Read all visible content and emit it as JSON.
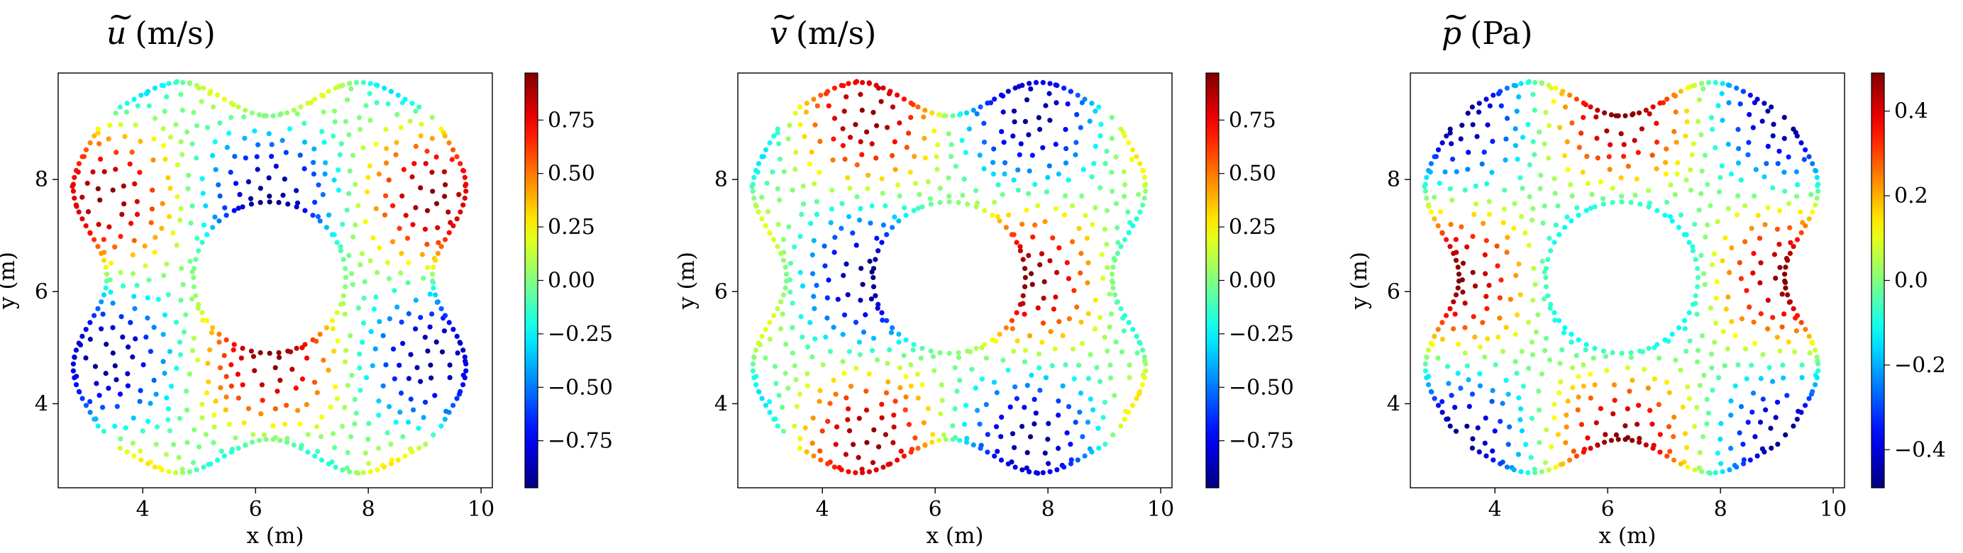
{
  "chart_data": [
    {
      "type": "scatter",
      "title_symbol": "u",
      "title_unit": "(m/s)",
      "xlabel": "x (m)",
      "ylabel": "y (m)",
      "xlim": [
        2.5,
        10.2
      ],
      "ylim": [
        2.5,
        9.9
      ],
      "xticks": [
        "4",
        "6",
        "8",
        "10"
      ],
      "yticks": [
        "4",
        "6",
        "8"
      ],
      "clim": [
        -0.97,
        0.97
      ],
      "colorbar_ticks": [
        "0.75",
        "0.50",
        "0.25",
        "0.00",
        "−0.25",
        "−0.50",
        "−0.75"
      ],
      "colorbar_tick_values": [
        0.75,
        0.5,
        0.25,
        0.0,
        -0.25,
        -0.5,
        -0.75
      ],
      "colormap": "jet",
      "field": "u"
    },
    {
      "type": "scatter",
      "title_symbol": "v",
      "title_unit": "(m/s)",
      "xlabel": "x (m)",
      "ylabel": "y (m)",
      "xlim": [
        2.5,
        10.2
      ],
      "ylim": [
        2.5,
        9.9
      ],
      "xticks": [
        "4",
        "6",
        "8",
        "10"
      ],
      "yticks": [
        "4",
        "6",
        "8"
      ],
      "clim": [
        -0.97,
        0.97
      ],
      "colorbar_ticks": [
        "0.75",
        "0.50",
        "0.25",
        "0.00",
        "−0.25",
        "−0.50",
        "−0.75"
      ],
      "colorbar_tick_values": [
        0.75,
        0.5,
        0.25,
        0.0,
        -0.25,
        -0.5,
        -0.75
      ],
      "colormap": "jet",
      "field": "v"
    },
    {
      "type": "scatter",
      "title_symbol": "p",
      "title_unit": "(Pa)",
      "xlabel": "x (m)",
      "ylabel": "y (m)",
      "xlim": [
        2.5,
        10.2
      ],
      "ylim": [
        2.5,
        9.9
      ],
      "xticks": [
        "4",
        "6",
        "8",
        "10"
      ],
      "yticks": [
        "4",
        "6",
        "8"
      ],
      "clim": [
        -0.49,
        0.49
      ],
      "colorbar_ticks": [
        "0.4",
        "0.2",
        "0.0",
        "−0.2",
        "−0.4"
      ],
      "colorbar_tick_values": [
        0.4,
        0.2,
        0.0,
        -0.2,
        -0.4
      ],
      "colormap": "jet",
      "field": "p"
    }
  ],
  "domain_geometry": {
    "center": [
      6.25,
      6.25
    ],
    "hole_radius": 1.35,
    "outer_half_width": 3.2,
    "outer_wave_amplitude": 0.3
  }
}
